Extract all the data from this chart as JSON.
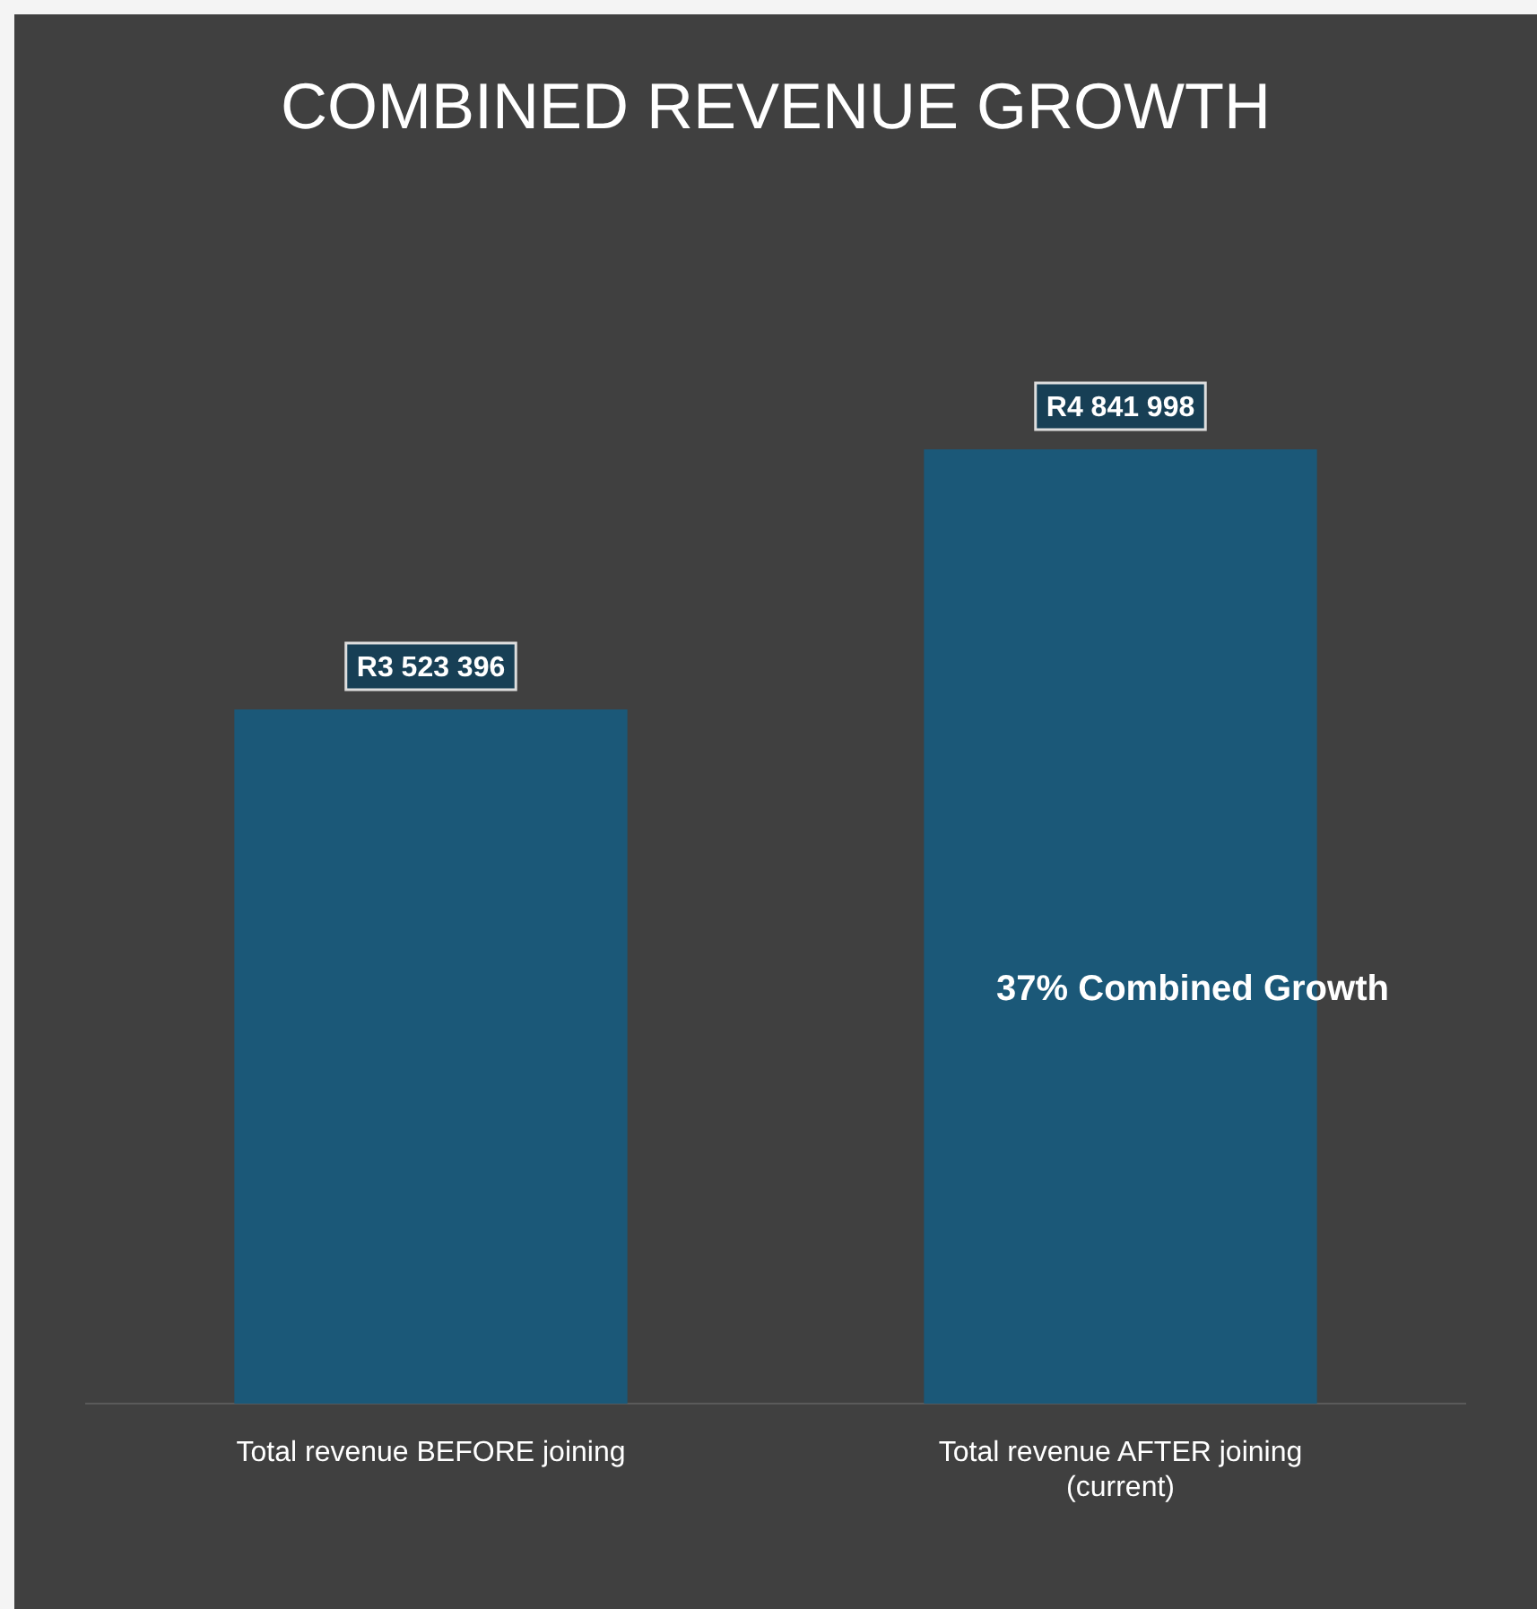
{
  "chart_data": {
    "type": "bar",
    "title": "COMBINED REVENUE GROWTH",
    "categories": [
      "Total revenue BEFORE joining",
      "Total revenue AFTER joining (current)"
    ],
    "values": [
      3523396,
      4841998
    ],
    "value_labels": [
      "R3 523 396",
      "R4 841 998"
    ],
    "color": "#1b5878",
    "grid": false,
    "legend": false,
    "annotations": [
      "37% Combined Growth"
    ]
  }
}
